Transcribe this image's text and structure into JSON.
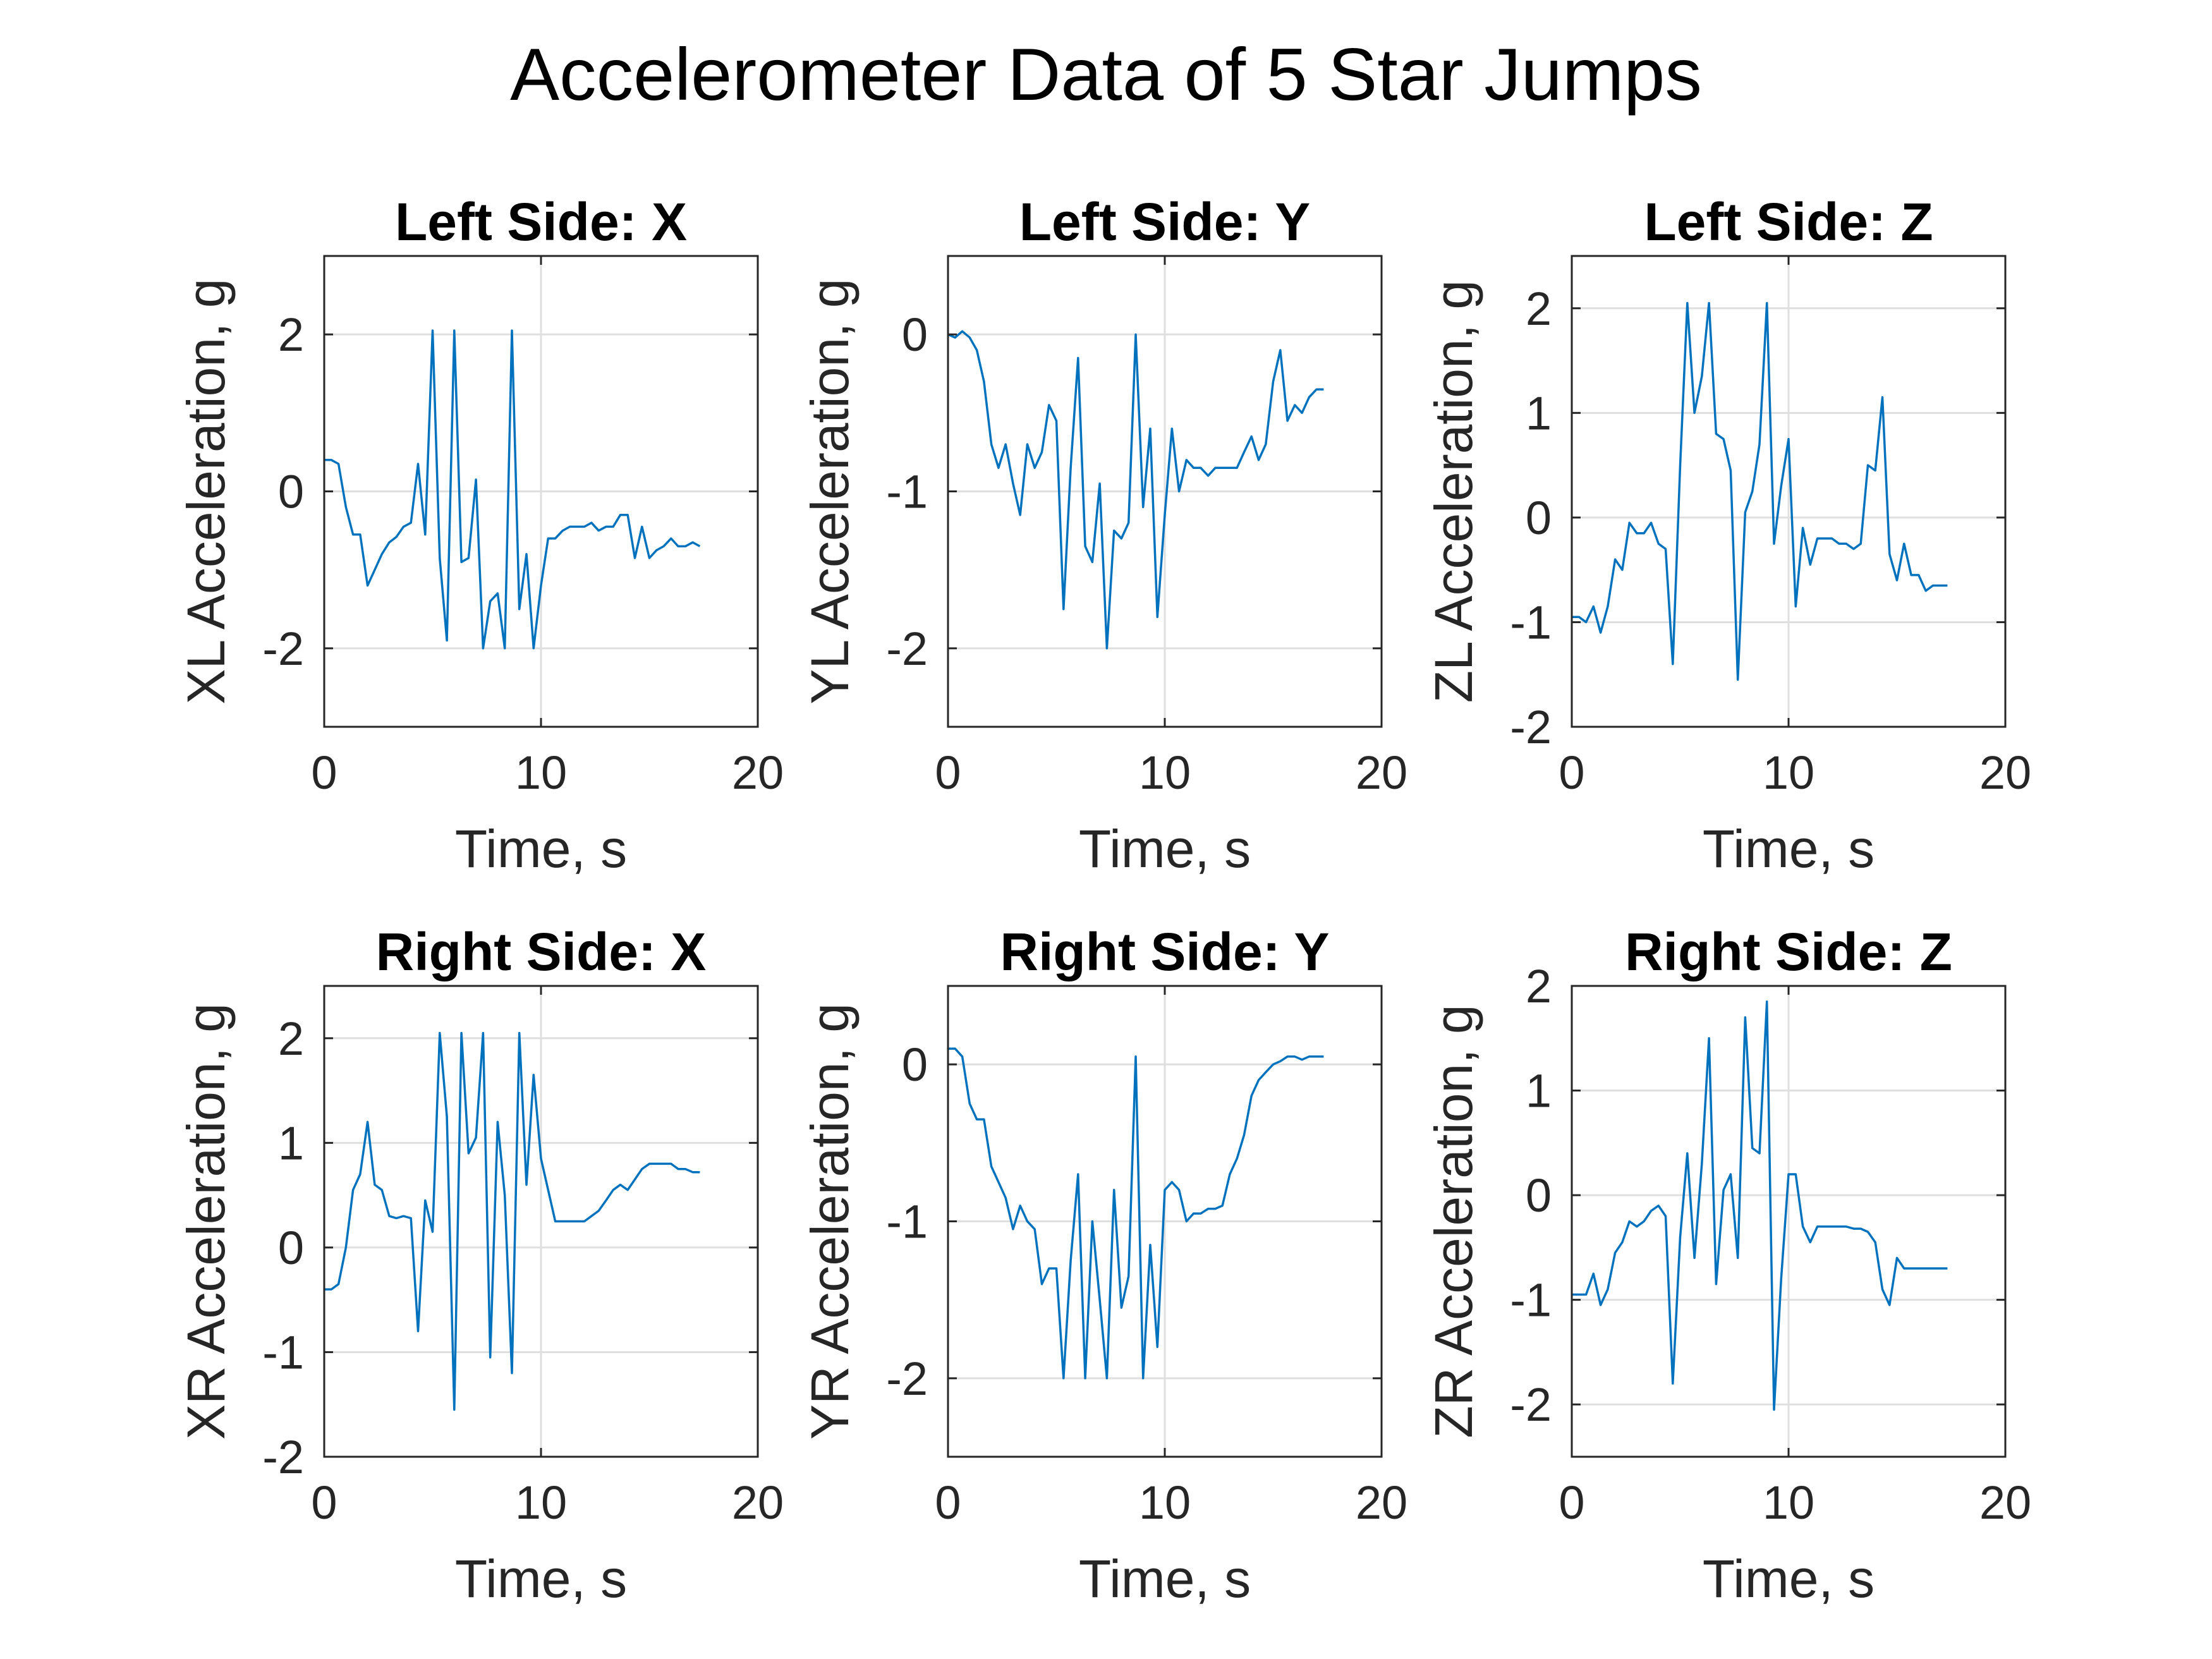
{
  "figure": {
    "title": "Accelerometer Data of 5 Star Jumps"
  },
  "style": {
    "line_color": "#0072BD",
    "axis_color": "#262626",
    "grid_color": "#dfdfdf"
  },
  "chart_data": [
    {
      "type": "line",
      "title": "Left Side: X",
      "xlabel": "Time, s",
      "ylabel": "XL Acceleration, g",
      "xlim": [
        0,
        20
      ],
      "ylim": [
        -3,
        3
      ],
      "xticks": [
        0,
        10,
        20
      ],
      "yticks": [
        -2,
        0,
        2
      ],
      "xtick_labels": [
        "0",
        "10",
        "20"
      ],
      "ytick_labels": [
        "-2",
        "0",
        "2"
      ],
      "grid": true,
      "x": [
        0,
        0.33,
        0.66,
        1.0,
        1.33,
        1.66,
        2.0,
        2.33,
        2.66,
        3.0,
        3.33,
        3.66,
        4.0,
        4.33,
        4.66,
        5.0,
        5.33,
        5.66,
        6.0,
        6.33,
        6.66,
        7.0,
        7.33,
        7.66,
        8.0,
        8.33,
        8.66,
        9.0,
        9.33,
        9.66,
        10.0,
        10.33,
        10.66,
        11.0,
        11.33,
        11.66,
        12.0,
        12.33,
        12.66,
        13.0,
        13.33,
        13.66,
        14.0,
        14.33,
        14.66,
        15.0,
        15.33,
        15.66,
        16.0,
        16.33,
        16.66,
        17.0,
        17.33
      ],
      "series": [
        {
          "values": [
            0.4,
            0.4,
            0.35,
            -0.2,
            -0.55,
            -0.55,
            -1.2,
            -1.0,
            -0.8,
            -0.65,
            -0.58,
            -0.45,
            -0.4,
            0.35,
            -0.55,
            2.05,
            -0.85,
            -1.9,
            2.05,
            -0.9,
            -0.85,
            0.15,
            -2.0,
            -1.4,
            -1.3,
            -2.0,
            2.05,
            -1.5,
            -0.8,
            -2.0,
            -1.2,
            -0.6,
            -0.6,
            -0.5,
            -0.45,
            -0.45,
            -0.45,
            -0.4,
            -0.5,
            -0.45,
            -0.45,
            -0.3,
            -0.3,
            -0.85,
            -0.45,
            -0.85,
            -0.75,
            -0.7,
            -0.6,
            -0.7,
            -0.7,
            -0.65,
            -0.7
          ]
        }
      ]
    },
    {
      "type": "line",
      "title": "Left Side: Y",
      "xlabel": "Time, s",
      "ylabel": "YL Acceleration, g",
      "xlim": [
        0,
        20
      ],
      "ylim": [
        -2.5,
        0.5
      ],
      "xticks": [
        0,
        10,
        20
      ],
      "yticks": [
        -2,
        -1,
        0
      ],
      "xtick_labels": [
        "0",
        "10",
        "20"
      ],
      "ytick_labels": [
        "-2",
        "-1",
        "0"
      ],
      "grid": true,
      "x": [
        0,
        0.33,
        0.66,
        1.0,
        1.33,
        1.66,
        2.0,
        2.33,
        2.66,
        3.0,
        3.33,
        3.66,
        4.0,
        4.33,
        4.66,
        5.0,
        5.33,
        5.66,
        6.0,
        6.33,
        6.66,
        7.0,
        7.33,
        7.66,
        8.0,
        8.33,
        8.66,
        9.0,
        9.33,
        9.66,
        10.0,
        10.33,
        10.66,
        11.0,
        11.33,
        11.66,
        12.0,
        12.33,
        12.66,
        13.0,
        13.33,
        13.66,
        14.0,
        14.33,
        14.66,
        15.0,
        15.33,
        15.66,
        16.0,
        16.33,
        16.66,
        17.0,
        17.33
      ],
      "series": [
        {
          "values": [
            0.0,
            -0.02,
            0.02,
            -0.02,
            -0.1,
            -0.3,
            -0.7,
            -0.85,
            -0.7,
            -0.95,
            -1.15,
            -0.7,
            -0.85,
            -0.75,
            -0.45,
            -0.55,
            -1.75,
            -0.85,
            -0.15,
            -1.35,
            -1.45,
            -0.95,
            -2.0,
            -1.25,
            -1.3,
            -1.2,
            0.0,
            -1.1,
            -0.6,
            -1.8,
            -1.15,
            -0.6,
            -1.0,
            -0.8,
            -0.85,
            -0.85,
            -0.9,
            -0.85,
            -0.85,
            -0.85,
            -0.85,
            -0.75,
            -0.65,
            -0.8,
            -0.7,
            -0.3,
            -0.1,
            -0.55,
            -0.45,
            -0.5,
            -0.4,
            -0.35,
            -0.35
          ]
        }
      ]
    },
    {
      "type": "line",
      "title": "Left Side: Z",
      "xlabel": "Time, s",
      "ylabel": "ZL Acceleration, g",
      "xlim": [
        0,
        20
      ],
      "ylim": [
        -2,
        2.5
      ],
      "xticks": [
        0,
        10,
        20
      ],
      "yticks": [
        -2,
        -1,
        0,
        1,
        2
      ],
      "xtick_labels": [
        "0",
        "10",
        "20"
      ],
      "ytick_labels": [
        "-2",
        "-1",
        "0",
        "1",
        "2"
      ],
      "grid": true,
      "x": [
        0,
        0.33,
        0.66,
        1.0,
        1.33,
        1.66,
        2.0,
        2.33,
        2.66,
        3.0,
        3.33,
        3.66,
        4.0,
        4.33,
        4.66,
        5.0,
        5.33,
        5.66,
        6.0,
        6.33,
        6.66,
        7.0,
        7.33,
        7.66,
        8.0,
        8.33,
        8.66,
        9.0,
        9.33,
        9.66,
        10.0,
        10.33,
        10.66,
        11.0,
        11.33,
        11.66,
        12.0,
        12.33,
        12.66,
        13.0,
        13.33,
        13.66,
        14.0,
        14.33,
        14.66,
        15.0,
        15.33,
        15.66,
        16.0,
        16.33,
        16.66,
        17.0,
        17.33
      ],
      "series": [
        {
          "values": [
            -0.95,
            -0.95,
            -1.0,
            -0.85,
            -1.1,
            -0.85,
            -0.4,
            -0.5,
            -0.05,
            -0.15,
            -0.15,
            -0.05,
            -0.25,
            -0.3,
            -1.4,
            0.5,
            2.05,
            1.0,
            1.35,
            2.05,
            0.8,
            0.75,
            0.45,
            -1.55,
            0.05,
            0.25,
            0.7,
            2.05,
            -0.25,
            0.3,
            0.75,
            -0.85,
            -0.1,
            -0.45,
            -0.2,
            -0.2,
            -0.2,
            -0.25,
            -0.25,
            -0.3,
            -0.25,
            0.5,
            0.45,
            1.15,
            -0.35,
            -0.6,
            -0.25,
            -0.55,
            -0.55,
            -0.7,
            -0.65,
            -0.65,
            -0.65
          ]
        }
      ]
    },
    {
      "type": "line",
      "title": "Right Side: X",
      "xlabel": "Time, s",
      "ylabel": "XR Acceleration, g",
      "xlim": [
        0,
        20
      ],
      "ylim": [
        -2,
        2.5
      ],
      "xticks": [
        0,
        10,
        20
      ],
      "yticks": [
        -2,
        -1,
        0,
        1,
        2
      ],
      "xtick_labels": [
        "0",
        "10",
        "20"
      ],
      "ytick_labels": [
        "-2",
        "-1",
        "0",
        "1",
        "2"
      ],
      "grid": true,
      "x": [
        0,
        0.33,
        0.66,
        1.0,
        1.33,
        1.66,
        2.0,
        2.33,
        2.66,
        3.0,
        3.33,
        3.66,
        4.0,
        4.33,
        4.66,
        5.0,
        5.33,
        5.66,
        6.0,
        6.33,
        6.66,
        7.0,
        7.33,
        7.66,
        8.0,
        8.33,
        8.66,
        9.0,
        9.33,
        9.66,
        10.0,
        10.33,
        10.66,
        11.0,
        11.33,
        11.66,
        12.0,
        12.33,
        12.66,
        13.0,
        13.33,
        13.66,
        14.0,
        14.33,
        14.66,
        15.0,
        15.33,
        15.66,
        16.0,
        16.33,
        16.66,
        17.0,
        17.33
      ],
      "series": [
        {
          "values": [
            -0.4,
            -0.4,
            -0.35,
            0.0,
            0.55,
            0.7,
            1.2,
            0.6,
            0.55,
            0.3,
            0.28,
            0.3,
            0.28,
            -0.8,
            0.45,
            0.15,
            2.05,
            1.25,
            -1.55,
            2.05,
            0.9,
            1.05,
            2.05,
            -1.05,
            1.2,
            0.5,
            -1.2,
            2.05,
            0.6,
            1.65,
            0.85,
            0.55,
            0.25,
            0.25,
            0.25,
            0.25,
            0.25,
            0.3,
            0.35,
            0.45,
            0.55,
            0.6,
            0.55,
            0.65,
            0.75,
            0.8,
            0.8,
            0.8,
            0.8,
            0.75,
            0.75,
            0.72,
            0.72
          ]
        }
      ]
    },
    {
      "type": "line",
      "title": "Right Side: Y",
      "xlabel": "Time, s",
      "ylabel": "YR Acceleration, g",
      "xlim": [
        0,
        20
      ],
      "ylim": [
        -2.5,
        0.5
      ],
      "xticks": [
        0,
        10,
        20
      ],
      "yticks": [
        -2,
        -1,
        0
      ],
      "xtick_labels": [
        "0",
        "10",
        "20"
      ],
      "ytick_labels": [
        "-2",
        "-1",
        "0"
      ],
      "grid": true,
      "x": [
        0,
        0.33,
        0.66,
        1.0,
        1.33,
        1.66,
        2.0,
        2.33,
        2.66,
        3.0,
        3.33,
        3.66,
        4.0,
        4.33,
        4.66,
        5.0,
        5.33,
        5.66,
        6.0,
        6.33,
        6.66,
        7.0,
        7.33,
        7.66,
        8.0,
        8.33,
        8.66,
        9.0,
        9.33,
        9.66,
        10.0,
        10.33,
        10.66,
        11.0,
        11.33,
        11.66,
        12.0,
        12.33,
        12.66,
        13.0,
        13.33,
        13.66,
        14.0,
        14.33,
        14.66,
        15.0,
        15.33,
        15.66,
        16.0,
        16.33,
        16.66,
        17.0,
        17.33
      ],
      "series": [
        {
          "values": [
            0.1,
            0.1,
            0.05,
            -0.25,
            -0.35,
            -0.35,
            -0.65,
            -0.75,
            -0.85,
            -1.05,
            -0.9,
            -1.0,
            -1.05,
            -1.4,
            -1.3,
            -1.3,
            -2.0,
            -1.25,
            -0.7,
            -2.0,
            -1.0,
            -1.5,
            -2.0,
            -0.8,
            -1.55,
            -1.35,
            0.05,
            -2.0,
            -1.15,
            -1.8,
            -0.8,
            -0.75,
            -0.8,
            -1.0,
            -0.95,
            -0.95,
            -0.92,
            -0.92,
            -0.9,
            -0.7,
            -0.6,
            -0.45,
            -0.2,
            -0.1,
            -0.05,
            0.0,
            0.02,
            0.05,
            0.05,
            0.03,
            0.05,
            0.05,
            0.05
          ]
        }
      ]
    },
    {
      "type": "line",
      "title": "Right Side: Z",
      "xlabel": "Time, s",
      "ylabel": "ZR Acceleration, g",
      "xlim": [
        0,
        20
      ],
      "ylim": [
        -2.5,
        2
      ],
      "xticks": [
        0,
        10,
        20
      ],
      "yticks": [
        -2,
        -1,
        0,
        1,
        2
      ],
      "xtick_labels": [
        "0",
        "10",
        "20"
      ],
      "ytick_labels": [
        "-2",
        "-1",
        "0",
        "1",
        "2"
      ],
      "grid": true,
      "x": [
        0,
        0.33,
        0.66,
        1.0,
        1.33,
        1.66,
        2.0,
        2.33,
        2.66,
        3.0,
        3.33,
        3.66,
        4.0,
        4.33,
        4.66,
        5.0,
        5.33,
        5.66,
        6.0,
        6.33,
        6.66,
        7.0,
        7.33,
        7.66,
        8.0,
        8.33,
        8.66,
        9.0,
        9.33,
        9.66,
        10.0,
        10.33,
        10.66,
        11.0,
        11.33,
        11.66,
        12.0,
        12.33,
        12.66,
        13.0,
        13.33,
        13.66,
        14.0,
        14.33,
        14.66,
        15.0,
        15.33,
        15.66,
        16.0,
        16.33,
        16.66,
        17.0,
        17.33
      ],
      "series": [
        {
          "values": [
            -0.95,
            -0.95,
            -0.95,
            -0.75,
            -1.05,
            -0.9,
            -0.55,
            -0.45,
            -0.25,
            -0.3,
            -0.25,
            -0.15,
            -0.1,
            -0.2,
            -1.8,
            -0.4,
            0.4,
            -0.6,
            0.3,
            1.5,
            -0.85,
            0.05,
            0.2,
            -0.6,
            1.7,
            0.45,
            0.4,
            1.85,
            -2.05,
            -0.8,
            0.2,
            0.2,
            -0.3,
            -0.45,
            -0.3,
            -0.3,
            -0.3,
            -0.3,
            -0.3,
            -0.32,
            -0.32,
            -0.35,
            -0.45,
            -0.9,
            -1.05,
            -0.6,
            -0.7,
            -0.7,
            -0.7,
            -0.7,
            -0.7,
            -0.7,
            -0.7
          ]
        }
      ]
    }
  ]
}
